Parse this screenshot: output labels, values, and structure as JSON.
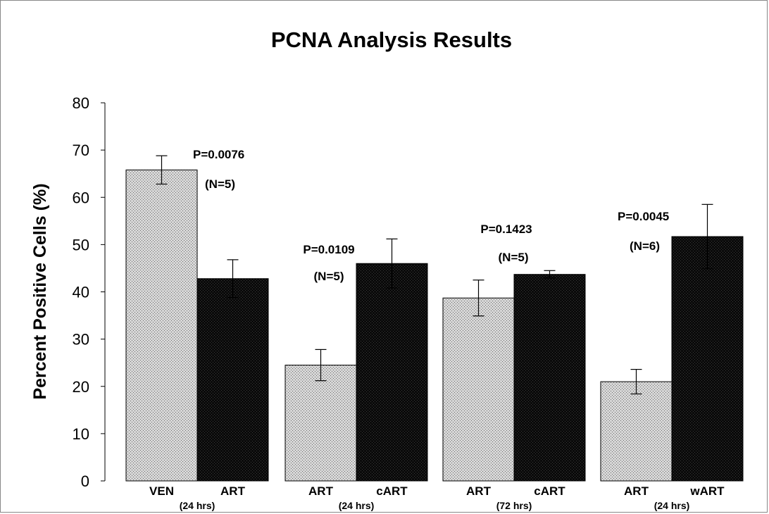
{
  "chart_data": {
    "type": "bar",
    "title": "PCNA Analysis Results",
    "ylabel": "Percent Positive Cells (%)",
    "xlabel": "",
    "ylim": [
      0,
      80
    ],
    "yticks": [
      0,
      10,
      20,
      30,
      40,
      50,
      60,
      70,
      80
    ],
    "grid": false,
    "colors": {
      "light": "#c8c8c8",
      "dark": "#0d0d0d"
    },
    "groups": [
      {
        "sublabel": "(24 hrs)",
        "bars": [
          {
            "label": "VEN",
            "value": 65.8,
            "error": 3.0,
            "color": "light"
          },
          {
            "label": "ART",
            "value": 42.8,
            "error": 4.0,
            "color": "dark"
          }
        ],
        "p_value": "P=0.0076",
        "n": "(N=5)"
      },
      {
        "sublabel": "(24 hrs)",
        "bars": [
          {
            "label": "ART",
            "value": 24.5,
            "error": 3.3,
            "color": "light"
          },
          {
            "label": "cART",
            "value": 46.0,
            "error": 5.2,
            "color": "dark"
          }
        ],
        "p_value": "P=0.0109",
        "n": "(N=5)"
      },
      {
        "sublabel": "(72 hrs)",
        "bars": [
          {
            "label": "ART",
            "value": 38.7,
            "error": 3.8,
            "color": "light"
          },
          {
            "label": "cART",
            "value": 43.7,
            "error": 0.8,
            "color": "dark"
          }
        ],
        "p_value": "P=0.1423",
        "n": "(N=5)"
      },
      {
        "sublabel": "(24 hrs)",
        "bars": [
          {
            "label": "ART",
            "value": 21.0,
            "error": 2.6,
            "color": "light"
          },
          {
            "label": "wART",
            "value": 51.7,
            "error": 6.8,
            "color": "dark"
          }
        ],
        "p_value": "P=0.0045",
        "n": "(N=6)"
      }
    ]
  }
}
